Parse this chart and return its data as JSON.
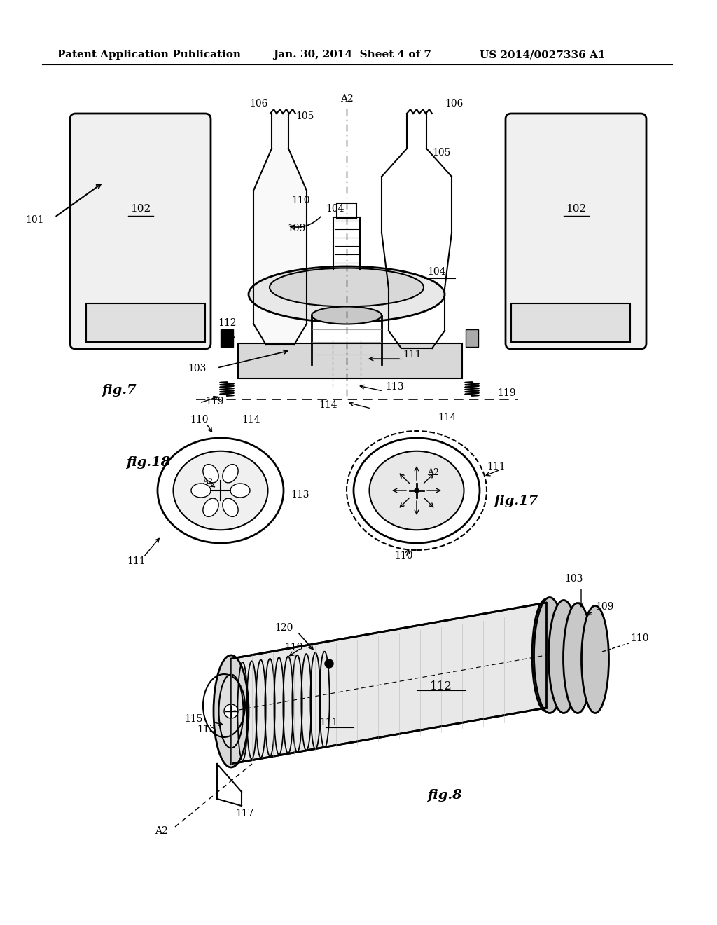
{
  "background_color": "#ffffff",
  "header_left": "Patent Application Publication",
  "header_center": "Jan. 30, 2014  Sheet 4 of 7",
  "header_right": "US 2014/0027336 A1",
  "header_fontsize": 11,
  "fig7_label": "fig.7",
  "fig17_label": "fig.17",
  "fig18_label": "fig.18",
  "fig8_label": "fig.8"
}
